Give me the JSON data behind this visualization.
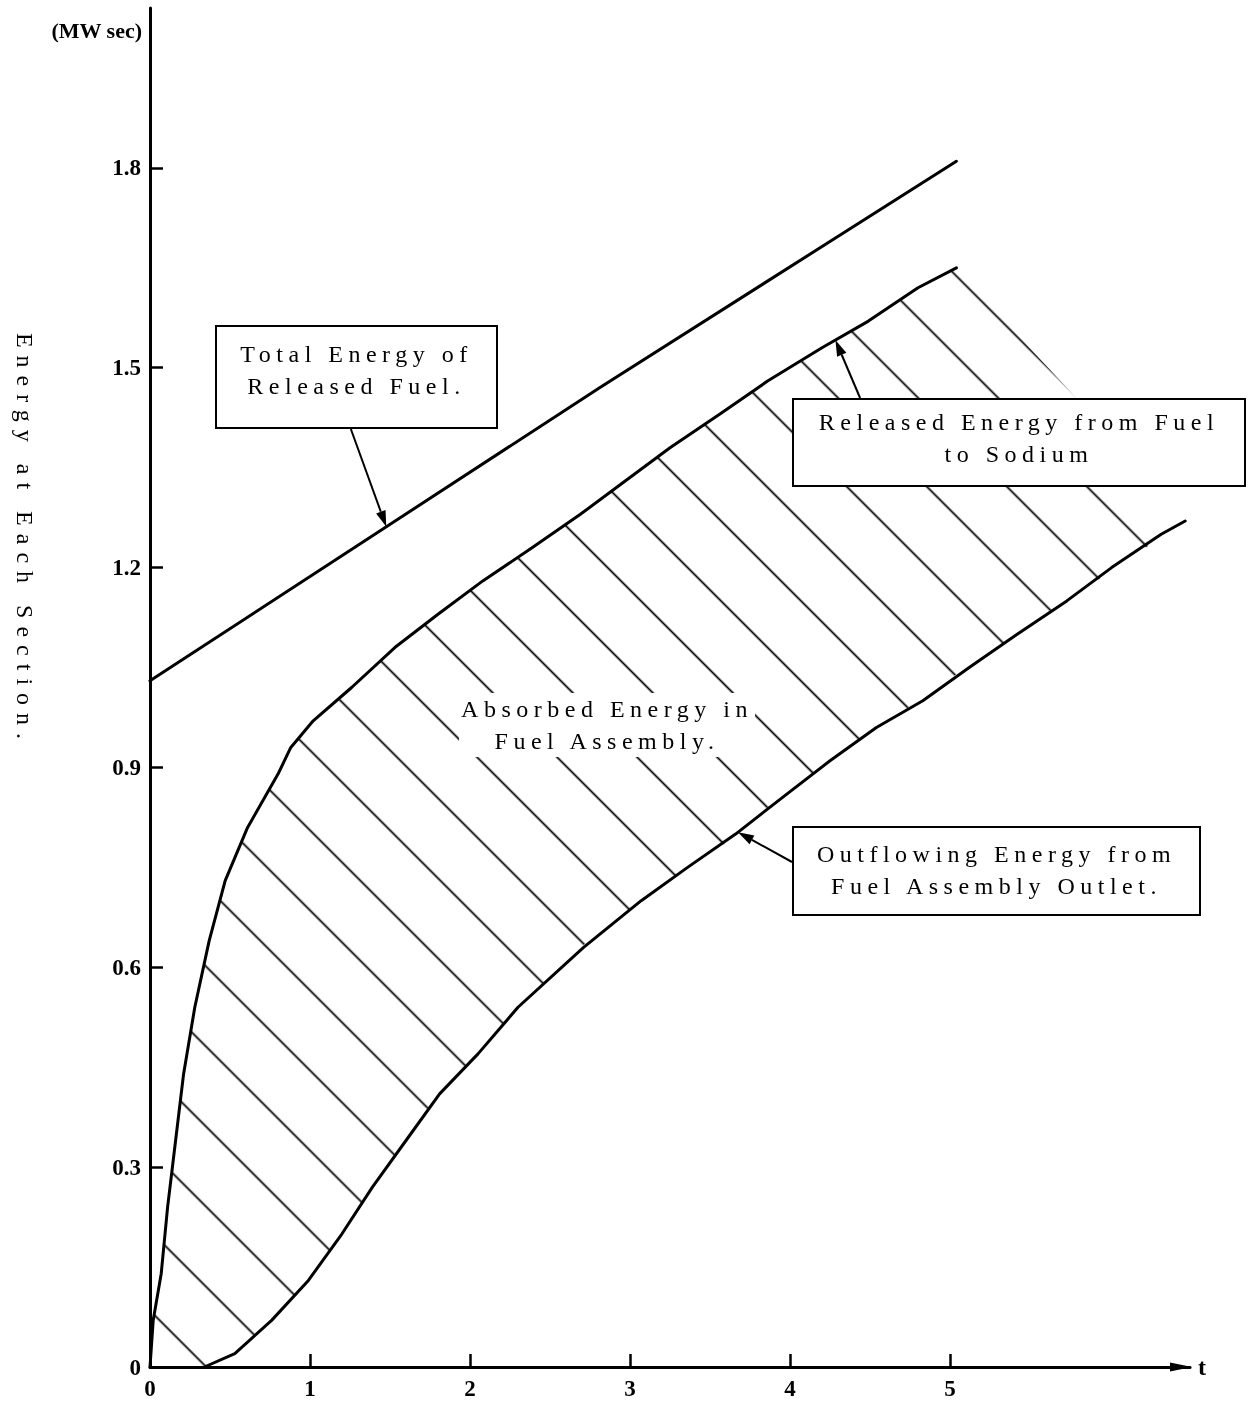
{
  "chart_data": {
    "type": "line",
    "xlabel": "t",
    "ylabel": "Energy at Each Section.",
    "annotations": [
      "(MW sec)",
      "Absorbed Energy in\nFuel Assembly."
    ],
    "xlim": [
      0,
      6.5
    ],
    "xticks": [
      0,
      1,
      2,
      3,
      4,
      5
    ],
    "ylim": [
      0,
      2.04
    ],
    "yticks": [
      0,
      0.3,
      0.6,
      0.9,
      1.2,
      1.5,
      1.8
    ],
    "series": [
      {
        "name": "Total Energy of\nReleased Fuel.",
        "color": "#000000",
        "x": [
          0,
          2.81,
          5.04
        ],
        "values": [
          1.03,
          1.47,
          1.81
        ]
      },
      {
        "name": "Released Energy from Fuel\nto Sodium",
        "color": "#000000",
        "x": [
          0,
          0.02,
          0.07,
          0.11,
          0.16,
          0.21,
          0.28,
          0.37,
          0.47,
          0.61,
          0.8,
          0.88,
          1.02,
          1.26,
          1.53,
          1.8,
          2.08,
          2.39,
          2.69,
          2.97,
          3.25,
          3.56,
          3.86,
          4.2,
          4.49,
          4.8,
          5.04,
          5.12,
          5.42,
          5.73,
          6.01,
          6.32,
          6.47
        ],
        "values": [
          0,
          0.07,
          0.14,
          0.24,
          0.34,
          0.44,
          0.54,
          0.64,
          0.73,
          0.81,
          0.89,
          0.93,
          0.97,
          1.02,
          1.08,
          1.13,
          1.18,
          1.23,
          1.28,
          1.33,
          1.38,
          1.43,
          1.48,
          1.53,
          1.57,
          1.62,
          1.65,
          null,
          null,
          null,
          null,
          null,
          null
        ],
        "upper": [
          0,
          0.07,
          0.14,
          0.24,
          0.34,
          0.44,
          0.54,
          0.64,
          0.73,
          0.81,
          0.89,
          0.93,
          0.97,
          1.02,
          1.08,
          1.13,
          1.18,
          1.23,
          1.28,
          1.33,
          1.38,
          1.43,
          1.48,
          1.53,
          1.57,
          1.62,
          1.65,
          1.63,
          1.55,
          1.47,
          null,
          null,
          1.27
        ],
        "lower": [
          0,
          0,
          0,
          0,
          0,
          0,
          0,
          0,
          0.01,
          0.04,
          0.08,
          0.1,
          0.14,
          0.22,
          0.32,
          0.41,
          0.48,
          0.56,
          0.63,
          0.68,
          0.73,
          0.78,
          0.84,
          0.9,
          0.95,
          1.0,
          1.04,
          1.05,
          1.1,
          1.15,
          null,
          null,
          1.27
        ]
      },
      {
        "name": "Outflowing Energy from\nFuel Assembly Outlet.",
        "color": "#000000",
        "x": [
          0.34,
          0.53,
          0.76,
          0.99,
          1.2,
          1.39,
          1.6,
          1.81,
          2.05,
          2.3,
          2.71,
          3.07,
          3.36,
          3.66,
          3.98,
          4.25,
          4.54,
          4.83,
          5.12,
          5.42,
          5.73,
          6.01,
          6.32,
          6.47
        ],
        "values": [
          0,
          0.02,
          0.07,
          0.13,
          0.2,
          0.27,
          0.34,
          0.41,
          0.47,
          0.54,
          0.63,
          0.7,
          0.75,
          0.8,
          0.86,
          0.91,
          0.96,
          1.0,
          1.05,
          1.1,
          1.15,
          1.2,
          1.25,
          1.27
        ]
      }
    ]
  }
}
